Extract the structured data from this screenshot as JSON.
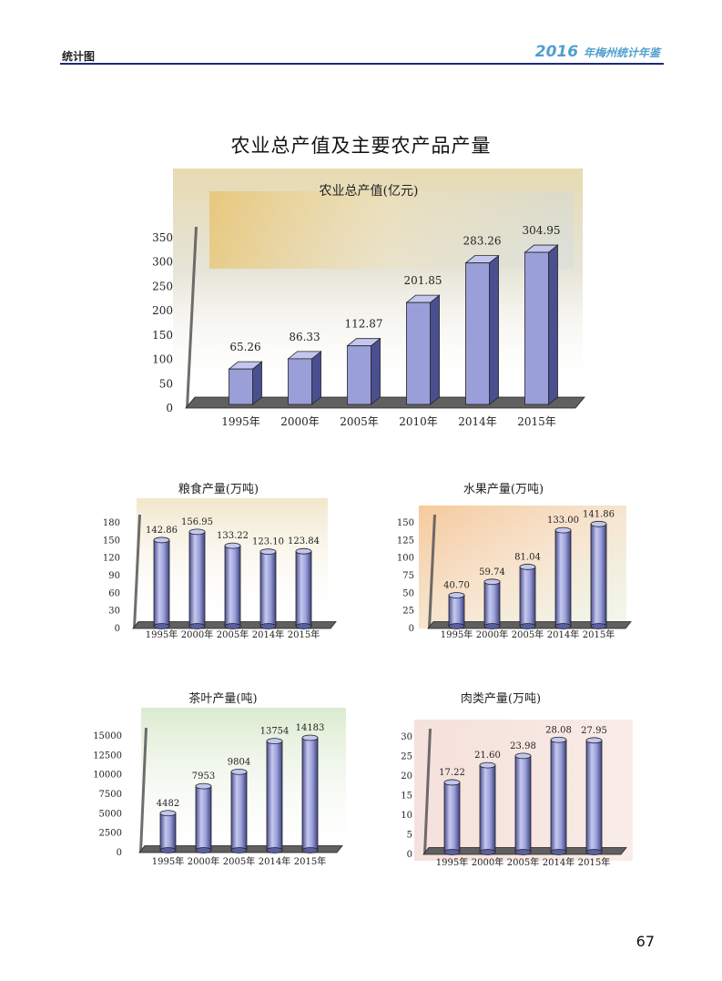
{
  "header": {
    "section": "统计图",
    "year": "2016",
    "book": "年梅州统计年鉴"
  },
  "page_title": "农业总产值及主要农产品产量",
  "page_number": "67",
  "colors": {
    "bar_face": "#9a9fd9",
    "bar_side": "#4a4f8f",
    "bar_top": "#c3c7ee",
    "header_line": "#1c2a78",
    "header_brand": "#4f9fcf"
  },
  "chart_data": [
    {
      "type": "bar",
      "title": "农业总产值(亿元)",
      "categories": [
        "1995年",
        "2000年",
        "2005年",
        "2010年",
        "2014年",
        "2015年"
      ],
      "values": [
        65.26,
        86.33,
        112.87,
        201.85,
        283.26,
        304.95
      ],
      "data_labels": [
        "65.26",
        "86.33",
        "112.87",
        "201.85",
        "283.26",
        "304.95"
      ],
      "ylim": [
        0,
        350
      ],
      "yticks": [
        0,
        50,
        100,
        150,
        200,
        250,
        300,
        350
      ],
      "grid": false
    },
    {
      "type": "bar",
      "title": "粮食产量(万吨)",
      "categories": [
        "1995年",
        "2000年",
        "2005年",
        "2014年",
        "2015年"
      ],
      "values": [
        142.86,
        156.95,
        133.22,
        123.1,
        123.84
      ],
      "data_labels": [
        "142.86",
        "156.95",
        "133.22",
        "123.10",
        "123.84"
      ],
      "ylim": [
        0,
        180
      ],
      "yticks": [
        0,
        30,
        60,
        90,
        120,
        150,
        180
      ],
      "grid": false
    },
    {
      "type": "bar",
      "title": "水果产量(万吨)",
      "categories": [
        "1995年",
        "2000年",
        "2005年",
        "2014年",
        "2015年"
      ],
      "values": [
        40.7,
        59.74,
        81.04,
        133.0,
        141.86
      ],
      "data_labels": [
        "40.70",
        "59.74",
        "81.04",
        "133.00",
        "141.86"
      ],
      "ylim": [
        0,
        150
      ],
      "yticks": [
        0,
        25,
        50,
        75,
        100,
        125,
        150
      ],
      "grid": false
    },
    {
      "type": "bar",
      "title": "茶叶产量(吨)",
      "categories": [
        "1995年",
        "2000年",
        "2005年",
        "2014年",
        "2015年"
      ],
      "values": [
        4482,
        7953,
        9804,
        13754,
        14183
      ],
      "data_labels": [
        "4482",
        "7953",
        "9804",
        "13754",
        "14183"
      ],
      "ylim": [
        0,
        15000
      ],
      "yticks": [
        0,
        2500,
        5000,
        7500,
        10000,
        12500,
        15000
      ],
      "grid": false
    },
    {
      "type": "bar",
      "title": "肉类产量(万吨)",
      "categories": [
        "1995年",
        "2000年",
        "2005年",
        "2014年",
        "2015年"
      ],
      "values": [
        17.22,
        21.6,
        23.98,
        28.08,
        27.95
      ],
      "data_labels": [
        "17.22",
        "21.60",
        "23.98",
        "28.08",
        "27.95"
      ],
      "ylim": [
        0,
        30
      ],
      "yticks": [
        0,
        5,
        10,
        15,
        20,
        25,
        30
      ],
      "grid": false
    }
  ]
}
